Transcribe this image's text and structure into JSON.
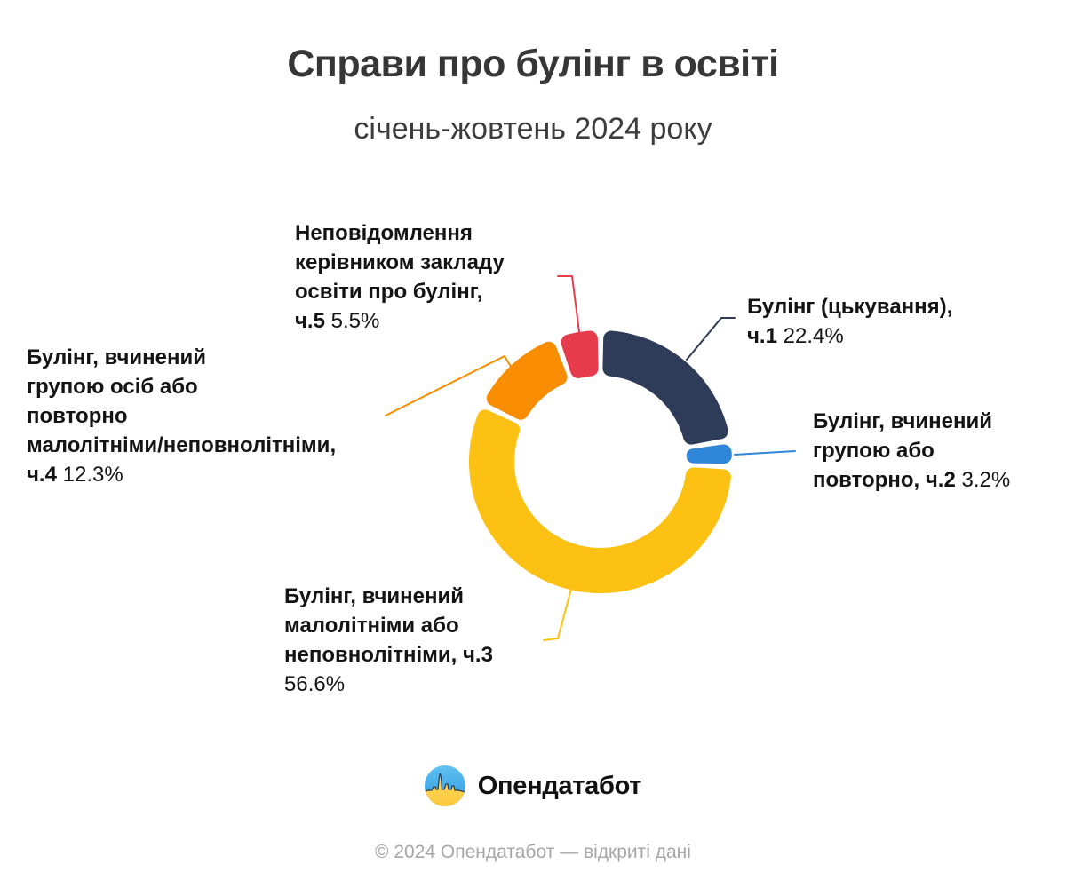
{
  "header": {
    "title": "Справи про булінг в освіті",
    "subtitle": "січень-жовтень 2024 року"
  },
  "chart_data": {
    "type": "pie",
    "subtype": "donut",
    "title": "Справи про булінг в освіті",
    "subtitle": "січень-жовтень 2024 року",
    "unit": "%",
    "total_percent": 100,
    "start_angle_deg": 0,
    "direction": "clockwise",
    "hole_ratio": 0.655,
    "legend_position": "callout-labels",
    "segments": [
      {
        "id": "ch1",
        "article_part": "ч.1",
        "label": "Булінг (цькування), ч.1",
        "value_percent": 22.4,
        "color": "#2e3b59",
        "display_name": "Булінг (цькування),\nч.1",
        "display_value": " 22.4%"
      },
      {
        "id": "ch2",
        "article_part": "ч.2",
        "label": "Булінг, вчинений групою або повторно, ч.2",
        "value_percent": 3.2,
        "color": "#2f86d8",
        "display_name": "Булінг, вчинений\nгрупою або\nповторно, ч.2",
        "display_value": " 3.2%"
      },
      {
        "id": "ch3",
        "article_part": "ч.3",
        "label": "Булінг, вчинений малолітніми або неповнолітніми, ч.3",
        "value_percent": 56.6,
        "color": "#fdc113",
        "display_name": "Булінг, вчинений\nмалолітніми або\nнеповнолітніми, ч.3",
        "display_value": "\n56.6%"
      },
      {
        "id": "ch4",
        "article_part": "ч.4",
        "label": "Булінг, вчинений групою осіб або повторно малолітніми/неповнолітніми, ч.4",
        "value_percent": 12.3,
        "color": "#f88d02",
        "display_name": "Булінг, вчинений\nгрупою осіб або\nповторно\nмалолітніми/неповнолітніми,\nч.4",
        "display_value": " 12.3%"
      },
      {
        "id": "ch5",
        "article_part": "ч.5",
        "label": "Неповідомлення керівником закладу освіти про булінг, ч.5",
        "value_percent": 5.5,
        "color": "#e63b4c",
        "display_name": "Неповідомлення\nкерівником закладу\nосвіти про булінг,\nч.5",
        "display_value": " 5.5%"
      }
    ]
  },
  "branding": {
    "logo_text": "Опендатабот",
    "flag_blue": "#3ba7e6",
    "flag_blue_light": "#5fc2f2",
    "flag_yellow": "#ffd95e",
    "flag_yellow_deep": "#fcc93e",
    "skyline_color": "#2a3f58"
  },
  "footer": {
    "text": "© 2024 Опендатабот — відкриті дані"
  }
}
